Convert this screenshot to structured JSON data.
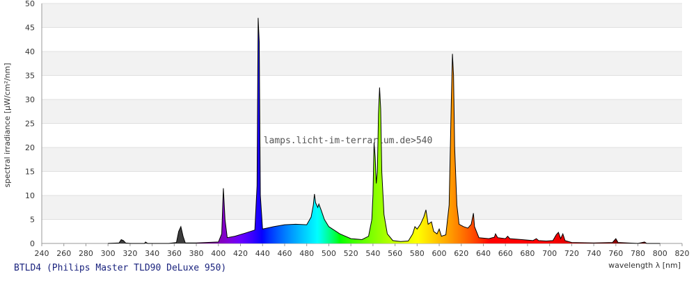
{
  "chart_data": {
    "type": "area",
    "title": "BTLD4 (Philips Master TLD90 DeLuxe 950)",
    "annotation": "lamps.licht-im-terrarium.de>540",
    "x_label": "wavelength λ [nm]",
    "y_label": "spectral irradiance [µW/cm²/nm]",
    "xlim": [
      240,
      820
    ],
    "ylim": [
      0,
      50
    ],
    "xticks": [
      240,
      260,
      280,
      300,
      320,
      340,
      360,
      380,
      400,
      420,
      440,
      460,
      480,
      500,
      520,
      540,
      560,
      580,
      600,
      620,
      640,
      660,
      680,
      700,
      720,
      740,
      760,
      780,
      800,
      820
    ],
    "yticks": [
      0,
      5,
      10,
      15,
      20,
      25,
      30,
      35,
      40,
      45,
      50
    ],
    "grid": true,
    "series": [
      {
        "name": "BTLD4",
        "color": "#000000",
        "x": [
          300,
          310,
          312,
          314,
          316,
          320,
          333,
          334,
          336,
          355,
          362,
          364,
          366,
          368,
          370,
          380,
          400,
          403,
          404.5,
          406,
          408,
          415,
          425,
          433,
          435,
          436,
          437,
          438,
          440,
          450,
          460,
          470,
          480,
          484,
          486,
          487,
          488,
          490,
          491,
          493,
          496,
          500,
          510,
          520,
          530,
          536,
          539,
          540,
          541,
          542,
          543,
          544,
          545,
          546,
          547,
          548,
          550,
          553,
          558,
          565,
          572,
          576,
          578,
          580,
          583,
          586,
          588,
          590,
          593,
          595,
          598,
          600,
          602,
          606,
          609,
          611,
          612,
          613,
          614,
          616,
          618,
          622,
          626,
          629,
          631,
          632,
          636,
          645,
          650,
          651,
          653,
          660,
          662,
          664,
          675,
          685,
          688,
          690,
          697,
          703,
          706,
          708,
          710,
          712,
          714,
          720,
          740,
          757,
          760,
          762,
          780,
          786,
          788,
          800
        ],
        "values": [
          0,
          0.1,
          0.8,
          0.6,
          0.1,
          0,
          0,
          0.3,
          0,
          0,
          0.2,
          2.5,
          3.5,
          1.5,
          0.1,
          0.1,
          0.3,
          2,
          11.5,
          5,
          1.2,
          1.5,
          2.2,
          2.8,
          12,
          47,
          42,
          10,
          3,
          3.5,
          3.9,
          4,
          3.9,
          5.5,
          8,
          10.3,
          8.5,
          7.5,
          8.2,
          7,
          5,
          3.5,
          2,
          1,
          0.8,
          1.5,
          5,
          10,
          21,
          18,
          12.5,
          15,
          27,
          32.5,
          28,
          15,
          6,
          2,
          0.6,
          0.4,
          0.5,
          2,
          3.5,
          3,
          4,
          5.5,
          7,
          4,
          4.5,
          2.5,
          2,
          3,
          1.5,
          1.8,
          8,
          30,
          39.5,
          35,
          20,
          8,
          4,
          3.5,
          3.2,
          4,
          6.3,
          3.5,
          1.2,
          1,
          1.3,
          2,
          1.2,
          1,
          1.5,
          1,
          0.8,
          0.6,
          1,
          0.6,
          0.5,
          0.6,
          1.8,
          2.3,
          1,
          2,
          0.6,
          0.2,
          0.1,
          0.2,
          1,
          0.2,
          0,
          0.3,
          0,
          0
        ]
      }
    ]
  }
}
